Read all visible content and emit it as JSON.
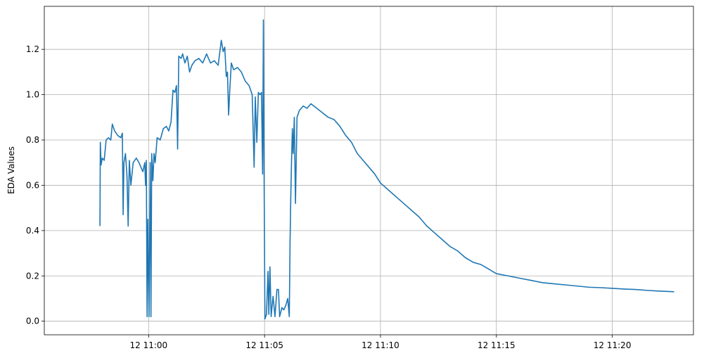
{
  "chart_data": {
    "type": "line",
    "ylabel": "EDA Values",
    "xlabel": "",
    "title": "",
    "grid": true,
    "line_color": "#1f77b4",
    "x_unit": "time (HH:MM on day 12, minutes as decimals)",
    "xlim": [
      "10:55:30",
      "11:23:30"
    ],
    "ylim": [
      -0.06,
      1.39
    ],
    "xticks": [
      {
        "time": "11:00",
        "label": "12 11:00"
      },
      {
        "time": "11:05",
        "label": "12 11:05"
      },
      {
        "time": "11:10",
        "label": "12 11:10"
      },
      {
        "time": "11:15",
        "label": "12 11:15"
      },
      {
        "time": "11:20",
        "label": "12 11:20"
      }
    ],
    "yticks": [
      {
        "value": 0.0,
        "label": "0.0"
      },
      {
        "value": 0.2,
        "label": "0.2"
      },
      {
        "value": 0.4,
        "label": "0.4"
      },
      {
        "value": 0.6,
        "label": "0.6"
      },
      {
        "value": 0.8,
        "label": "0.8"
      },
      {
        "value": 1.0,
        "label": "1.0"
      },
      {
        "value": 1.2,
        "label": "1.2"
      }
    ],
    "series": [
      {
        "points": [
          [
            "10:57:54",
            0.42
          ],
          [
            "10:57:55",
            0.79
          ],
          [
            "10:57:57",
            0.69
          ],
          [
            "10:58:00",
            0.72
          ],
          [
            "10:58:05",
            0.71
          ],
          [
            "10:58:10",
            0.8
          ],
          [
            "10:58:16",
            0.81
          ],
          [
            "10:58:22",
            0.8
          ],
          [
            "10:58:26",
            0.87
          ],
          [
            "10:58:32",
            0.84
          ],
          [
            "10:58:40",
            0.82
          ],
          [
            "10:58:48",
            0.81
          ],
          [
            "10:58:52",
            0.83
          ],
          [
            "10:58:54",
            0.47
          ],
          [
            "10:58:56",
            0.7
          ],
          [
            "10:59:00",
            0.74
          ],
          [
            "10:59:04",
            0.64
          ],
          [
            "10:59:07",
            0.42
          ],
          [
            "10:59:10",
            0.71
          ],
          [
            "10:59:14",
            0.6
          ],
          [
            "10:59:20",
            0.7
          ],
          [
            "10:59:28",
            0.72
          ],
          [
            "10:59:35",
            0.7
          ],
          [
            "10:59:40",
            0.68
          ],
          [
            "10:59:45",
            0.66
          ],
          [
            "10:59:50",
            0.7
          ],
          [
            "10:59:52",
            0.6
          ],
          [
            "10:59:54",
            0.71
          ],
          [
            "10:59:56",
            0.02
          ],
          [
            "10:59:58",
            0.45
          ],
          [
            "11:00:01",
            0.02
          ],
          [
            "11:00:04",
            0.7
          ],
          [
            "11:00:06",
            0.02
          ],
          [
            "11:00:08",
            0.74
          ],
          [
            "11:00:11",
            0.62
          ],
          [
            "11:00:14",
            0.74
          ],
          [
            "11:00:17",
            0.7
          ],
          [
            "11:00:22",
            0.81
          ],
          [
            "11:00:30",
            0.8
          ],
          [
            "11:00:38",
            0.85
          ],
          [
            "11:00:46",
            0.86
          ],
          [
            "11:00:52",
            0.84
          ],
          [
            "11:00:58",
            0.88
          ],
          [
            "11:01:03",
            1.02
          ],
          [
            "11:01:08",
            1.01
          ],
          [
            "11:01:12",
            1.04
          ],
          [
            "11:01:15",
            0.76
          ],
          [
            "11:01:18",
            1.17
          ],
          [
            "11:01:24",
            1.16
          ],
          [
            "11:01:28",
            1.18
          ],
          [
            "11:01:34",
            1.14
          ],
          [
            "11:01:40",
            1.17
          ],
          [
            "11:01:46",
            1.1
          ],
          [
            "11:01:52",
            1.13
          ],
          [
            "11:02:00",
            1.15
          ],
          [
            "11:02:10",
            1.16
          ],
          [
            "11:02:20",
            1.14
          ],
          [
            "11:02:30",
            1.18
          ],
          [
            "11:02:40",
            1.14
          ],
          [
            "11:02:50",
            1.15
          ],
          [
            "11:03:00",
            1.13
          ],
          [
            "11:03:08",
            1.24
          ],
          [
            "11:03:13",
            1.19
          ],
          [
            "11:03:17",
            1.21
          ],
          [
            "11:03:21",
            1.08
          ],
          [
            "11:03:24",
            1.1
          ],
          [
            "11:03:27",
            0.91
          ],
          [
            "11:03:30",
            1.02
          ],
          [
            "11:03:34",
            1.14
          ],
          [
            "11:03:40",
            1.11
          ],
          [
            "11:03:50",
            1.12
          ],
          [
            "11:04:00",
            1.1
          ],
          [
            "11:04:10",
            1.06
          ],
          [
            "11:04:20",
            1.04
          ],
          [
            "11:04:28",
            1.0
          ],
          [
            "11:04:33",
            0.68
          ],
          [
            "11:04:36",
            0.99
          ],
          [
            "11:04:40",
            0.79
          ],
          [
            "11:04:44",
            1.01
          ],
          [
            "11:04:48",
            1.0
          ],
          [
            "11:04:52",
            1.01
          ],
          [
            "11:04:55",
            0.65
          ],
          [
            "11:04:57",
            1.33
          ],
          [
            "11:04:59",
            0.59
          ],
          [
            "11:05:01",
            0.01
          ],
          [
            "11:05:05",
            0.03
          ],
          [
            "11:05:09",
            0.22
          ],
          [
            "11:05:11",
            0.03
          ],
          [
            "11:05:14",
            0.24
          ],
          [
            "11:05:17",
            0.02
          ],
          [
            "11:05:22",
            0.11
          ],
          [
            "11:05:27",
            0.02
          ],
          [
            "11:05:32",
            0.14
          ],
          [
            "11:05:36",
            0.14
          ],
          [
            "11:05:39",
            0.02
          ],
          [
            "11:05:45",
            0.06
          ],
          [
            "11:05:50",
            0.05
          ],
          [
            "11:05:55",
            0.07
          ],
          [
            "11:06:00",
            0.1
          ],
          [
            "11:06:04",
            0.02
          ],
          [
            "11:06:06",
            0.35
          ],
          [
            "11:06:08",
            0.56
          ],
          [
            "11:06:10",
            0.72
          ],
          [
            "11:06:12",
            0.85
          ],
          [
            "11:06:14",
            0.74
          ],
          [
            "11:06:17",
            0.9
          ],
          [
            "11:06:20",
            0.52
          ],
          [
            "11:06:24",
            0.9
          ],
          [
            "11:06:30",
            0.93
          ],
          [
            "11:06:40",
            0.95
          ],
          [
            "11:06:50",
            0.94
          ],
          [
            "11:07:00",
            0.96
          ],
          [
            "11:07:15",
            0.94
          ],
          [
            "11:07:30",
            0.92
          ],
          [
            "11:07:45",
            0.9
          ],
          [
            "11:08:00",
            0.89
          ],
          [
            "11:08:15",
            0.86
          ],
          [
            "11:08:30",
            0.82
          ],
          [
            "11:08:45",
            0.79
          ],
          [
            "11:09:00",
            0.74
          ],
          [
            "11:09:15",
            0.71
          ],
          [
            "11:09:30",
            0.68
          ],
          [
            "11:09:45",
            0.65
          ],
          [
            "11:10:00",
            0.61
          ],
          [
            "11:10:20",
            0.58
          ],
          [
            "11:10:40",
            0.55
          ],
          [
            "11:11:00",
            0.52
          ],
          [
            "11:11:20",
            0.49
          ],
          [
            "11:11:40",
            0.46
          ],
          [
            "11:12:00",
            0.42
          ],
          [
            "11:12:20",
            0.39
          ],
          [
            "11:12:40",
            0.36
          ],
          [
            "11:13:00",
            0.33
          ],
          [
            "11:13:20",
            0.31
          ],
          [
            "11:13:40",
            0.28
          ],
          [
            "11:14:00",
            0.26
          ],
          [
            "11:14:20",
            0.25
          ],
          [
            "11:14:40",
            0.23
          ],
          [
            "11:15:00",
            0.21
          ],
          [
            "11:15:30",
            0.2
          ],
          [
            "11:16:00",
            0.19
          ],
          [
            "11:16:30",
            0.18
          ],
          [
            "11:17:00",
            0.17
          ],
          [
            "11:17:30",
            0.165
          ],
          [
            "11:18:00",
            0.16
          ],
          [
            "11:18:30",
            0.155
          ],
          [
            "11:19:00",
            0.15
          ],
          [
            "11:19:30",
            0.148
          ],
          [
            "11:20:00",
            0.145
          ],
          [
            "11:20:30",
            0.142
          ],
          [
            "11:21:00",
            0.14
          ],
          [
            "11:21:30",
            0.136
          ],
          [
            "11:22:00",
            0.133
          ],
          [
            "11:22:40",
            0.13
          ]
        ]
      }
    ]
  }
}
